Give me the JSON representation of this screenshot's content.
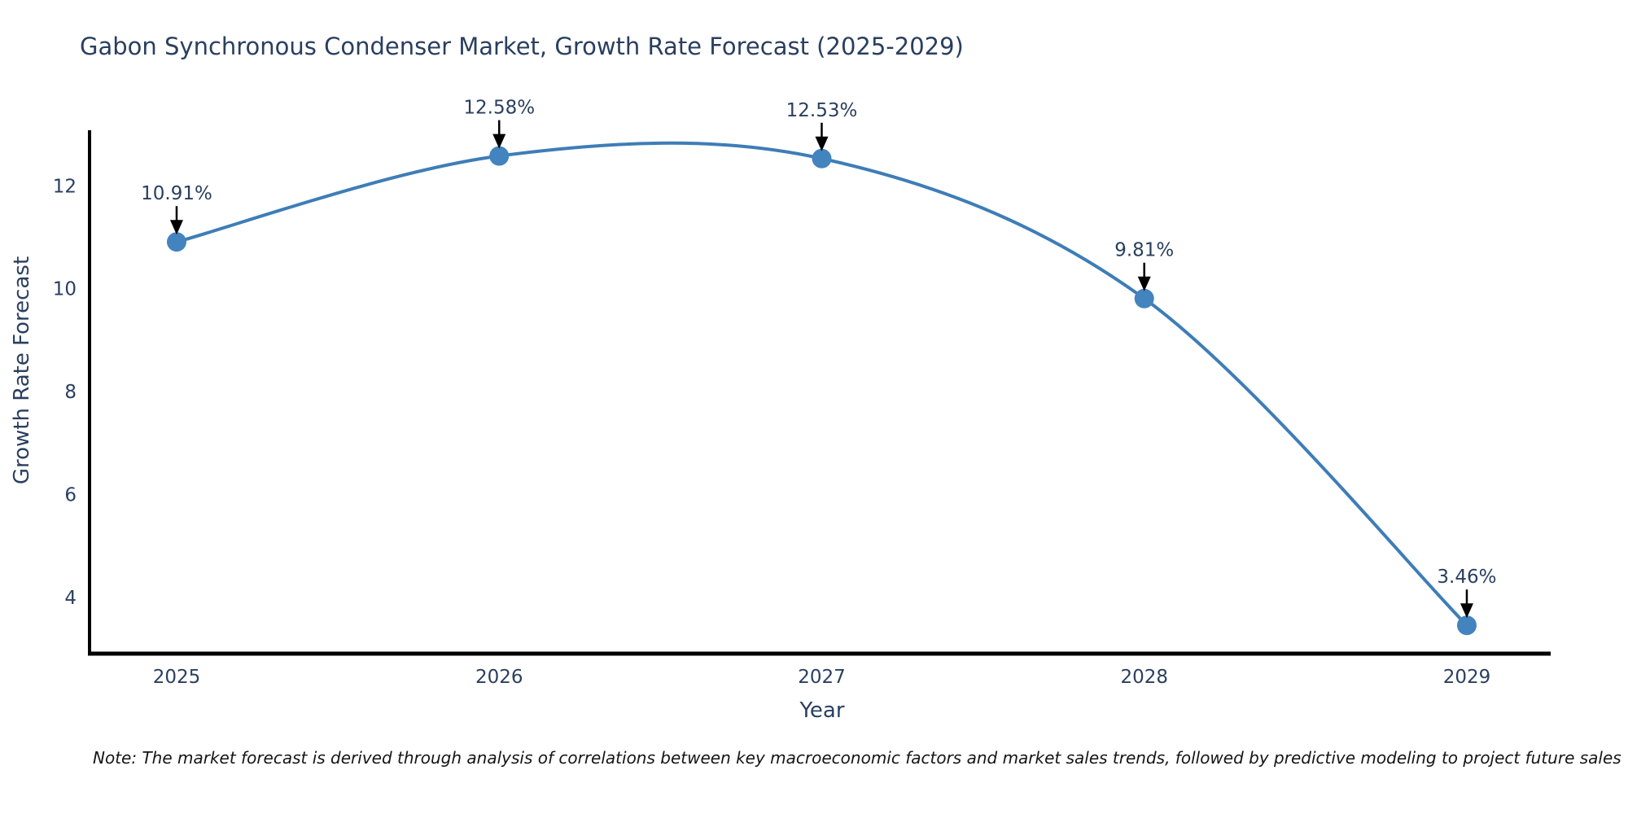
{
  "chart": {
    "title": "Gabon Synchronous Condenser Market, Growth Rate Forecast (2025-2029)",
    "xlabel": "Year",
    "ylabel": "Growth Rate Forecast",
    "note": "Note: The market forecast is derived through analysis of correlations between key macroeconomic factors and market sales trends, followed by predictive modeling to project future sales"
  },
  "chart_data": {
    "type": "line",
    "title": "Gabon Synchronous Condenser Market, Growth Rate Forecast (2025-2029)",
    "xlabel": "Year",
    "ylabel": "Growth Rate Forecast",
    "categories": [
      "2025",
      "2026",
      "2027",
      "2028",
      "2029"
    ],
    "x": [
      2025,
      2026,
      2027,
      2028,
      2029
    ],
    "series": [
      {
        "name": "Growth Rate Forecast",
        "values": [
          10.91,
          12.58,
          12.53,
          9.81,
          3.46
        ]
      }
    ],
    "point_labels": [
      "10.91%",
      "12.58%",
      "12.53%",
      "9.81%",
      "3.46%"
    ],
    "yticks": [
      4,
      6,
      8,
      10,
      12
    ],
    "ylim": [
      2.91,
      13.08
    ],
    "xlim": [
      2024.73,
      2029.26
    ],
    "line_shape": "spline",
    "grid": false,
    "legend": false,
    "marker_size": 12,
    "line_width": 4,
    "colors": {
      "line": "#3e7db7",
      "marker": "#4384bf",
      "axis": "#000000",
      "tick_text": "#2a3f5f",
      "annotation_text": "#2a3f5f",
      "annotation_arrow": "#000000"
    }
  }
}
